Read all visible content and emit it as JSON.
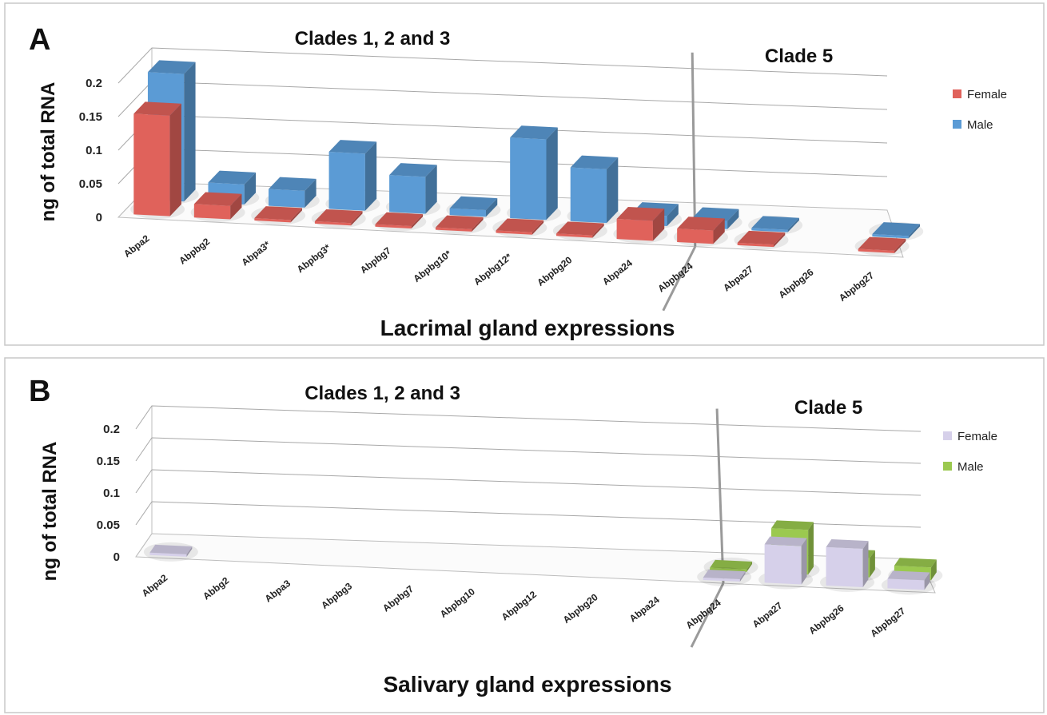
{
  "chart_data": [
    {
      "panel": "A",
      "type": "bar",
      "subtype": "3d-clustered-column",
      "xlabel": "Lacrimal gland expressions",
      "ylabel": "ng of total RNA",
      "ylim": [
        0,
        0.2
      ],
      "yticks": [
        "0",
        "0.05",
        "0.1",
        "0.15",
        "0.2"
      ],
      "groups": [
        {
          "label": "Clades 1, 2 and 3",
          "count": 10
        },
        {
          "label": "Clade 5",
          "count": 3
        }
      ],
      "categories": [
        "Abpa2",
        "Abpbg2",
        "Abpa3*",
        "Abpbg3*",
        "Abpbg7",
        "Abpbg10*",
        "Abpbg12*",
        "Abpbg20",
        "Abpa24",
        "Abpbg24",
        "Abpa27",
        "Abpbg26",
        "Abpbg27"
      ],
      "series": [
        {
          "name": "Female",
          "color": "#e0625b",
          "values": [
            0.15,
            0.02,
            0,
            0,
            0,
            0,
            0,
            0,
            0.03,
            0.02,
            0,
            null,
            0
          ]
        },
        {
          "name": "Male",
          "color": "#5b9bd5",
          "values": [
            0.19,
            0.03,
            0.025,
            0.085,
            0.055,
            0.01,
            0.12,
            0.08,
            0.015,
            0.012,
            0,
            null,
            0
          ]
        }
      ],
      "grid": true,
      "legend": "right"
    },
    {
      "panel": "B",
      "type": "bar",
      "subtype": "3d-clustered-column",
      "xlabel": "Salivary gland expressions",
      "ylabel": "ng of total RNA",
      "ylim": [
        0,
        0.2
      ],
      "yticks": [
        "0",
        "0.05",
        "0.1",
        "0.15",
        "0.2"
      ],
      "groups": [
        {
          "label": "Clades 1, 2 and 3",
          "count": 10
        },
        {
          "label": "Clade 5",
          "count": 3
        }
      ],
      "categories": [
        "Abpa2",
        "Abbg2",
        "Abpa3",
        "Abpbg3",
        "Abpbg7",
        "Abpbg10",
        "Abpbg12",
        "Abpbg20",
        "Abpa24",
        "Abpbg24",
        "Abpa27",
        "Abpbg26",
        "Abpbg27"
      ],
      "series": [
        {
          "name": "Female",
          "color": "#d6d0ea",
          "values": [
            0,
            null,
            null,
            null,
            null,
            null,
            null,
            null,
            null,
            0,
            0.06,
            0.06,
            0.015
          ]
        },
        {
          "name": "Male",
          "color": "#9bc94f",
          "values": [
            null,
            null,
            null,
            null,
            null,
            null,
            null,
            null,
            null,
            0,
            0.07,
            0.03,
            0.02
          ]
        }
      ],
      "grid": true,
      "legend": "right"
    }
  ]
}
